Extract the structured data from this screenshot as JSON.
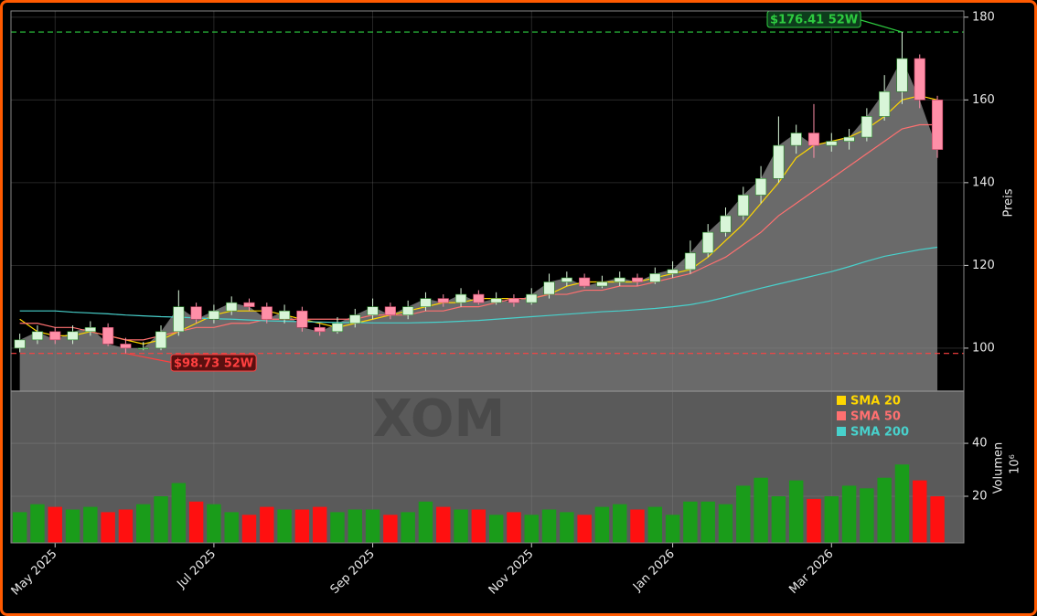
{
  "chart_data": {
    "type": "candlestick",
    "title": "XOM",
    "categories": [
      null,
      null,
      "May 2025",
      null,
      null,
      null,
      null,
      null,
      null,
      null,
      null,
      "Jul 2025",
      null,
      null,
      null,
      null,
      null,
      null,
      null,
      null,
      "Sep 2025",
      null,
      null,
      null,
      null,
      null,
      null,
      null,
      null,
      "Nov 2025",
      null,
      null,
      null,
      null,
      null,
      null,
      null,
      "Jan 2026",
      null,
      null,
      null,
      null,
      null,
      null,
      null,
      null,
      "Mar 2026",
      null,
      null,
      null,
      null,
      null,
      null
    ],
    "open": [
      100,
      102,
      104,
      102,
      104,
      105,
      101,
      100,
      100,
      104,
      110,
      107,
      109,
      111,
      110,
      107,
      109,
      105,
      104,
      106,
      108,
      110,
      108,
      110,
      112,
      111,
      113,
      111,
      112,
      111,
      113,
      116,
      117,
      115,
      116,
      117,
      116,
      118,
      119,
      123,
      128,
      132,
      137,
      141,
      149,
      152,
      149,
      150,
      151,
      156,
      162,
      170,
      160
    ],
    "high": [
      103.5,
      105.5,
      105,
      105.5,
      106.5,
      106,
      102.5,
      101.5,
      105.5,
      114,
      111,
      110.5,
      112.5,
      112,
      111,
      110.5,
      110,
      106,
      107.5,
      109.5,
      112,
      111,
      111.5,
      113.5,
      113,
      114.5,
      114,
      113.5,
      113,
      114.5,
      118,
      118.5,
      118,
      117.5,
      118.5,
      118,
      119.5,
      121,
      126,
      130,
      134,
      139,
      144,
      156,
      154,
      159,
      152,
      153,
      158,
      166,
      176.41,
      171,
      161
    ],
    "low": [
      99,
      101,
      101,
      101,
      103,
      100.5,
      98.73,
      99.5,
      99.5,
      103,
      106,
      106,
      108,
      109,
      106,
      106,
      104,
      103,
      103.5,
      105,
      107,
      107,
      107,
      109,
      110,
      110,
      110.5,
      110.5,
      110,
      110.5,
      112,
      115,
      114.5,
      114.5,
      115,
      115,
      115.5,
      117,
      118,
      122,
      127,
      131,
      135,
      140,
      147,
      146,
      147.5,
      148,
      150,
      155,
      159,
      158,
      146
    ],
    "close": [
      102,
      104,
      102,
      104,
      105,
      101,
      100,
      100,
      104,
      110,
      107,
      109,
      111,
      110,
      107,
      109,
      105,
      104,
      106,
      108,
      110,
      108,
      110,
      112,
      111,
      113,
      111,
      112,
      111,
      113,
      116,
      117,
      115,
      116,
      117,
      116,
      118,
      119,
      123,
      128,
      132,
      137,
      141,
      149,
      152,
      149,
      150,
      151,
      156,
      162,
      170,
      160,
      148
    ],
    "up_color": "#d8f5d8",
    "down_color": "#ff8fa8",
    "area_color": "#6a6a6a",
    "ylim": [
      89.6,
      181.5
    ],
    "yticks": [
      100,
      120,
      140,
      160,
      180
    ],
    "ylabel": "Preis",
    "grid": true,
    "series": [
      {
        "name": "SMA 20",
        "color": "#ffd700",
        "values": [
          107,
          104,
          103,
          103,
          104,
          103,
          102,
          101,
          102,
          104,
          106,
          108,
          109,
          109,
          109,
          108,
          107,
          106,
          105,
          106,
          107,
          108,
          109,
          110,
          111,
          111,
          112,
          112,
          112,
          112,
          113,
          115,
          116,
          116,
          116,
          116,
          117,
          118,
          119,
          122,
          126,
          130,
          135,
          140,
          146,
          149,
          150,
          151,
          153,
          156,
          160,
          161,
          160
        ]
      },
      {
        "name": "SMA 50",
        "color": "#ff7070",
        "values": [
          106,
          106,
          105,
          105,
          104,
          103,
          102,
          102,
          103,
          104,
          105,
          105,
          106,
          106,
          107,
          107,
          107,
          107,
          107,
          107,
          108,
          108,
          108,
          109,
          109,
          110,
          110,
          111,
          112,
          112,
          113,
          113,
          114,
          114,
          115,
          115,
          116,
          117,
          118,
          120,
          122,
          125,
          128,
          132,
          135,
          138,
          141,
          144,
          147,
          150,
          153,
          154,
          154
        ]
      },
      {
        "name": "SMA 200",
        "color": "#48d1cc",
        "values": [
          109,
          109,
          109,
          108.7,
          108.5,
          108.3,
          108,
          107.8,
          107.6,
          107.5,
          107.3,
          107.1,
          107,
          106.8,
          106.6,
          106.5,
          106.4,
          106.3,
          106.2,
          106.2,
          106.1,
          106.1,
          106.1,
          106.2,
          106.3,
          106.5,
          106.7,
          107,
          107.3,
          107.6,
          107.9,
          108.2,
          108.5,
          108.8,
          109,
          109.3,
          109.6,
          110,
          110.5,
          111.3,
          112.3,
          113.4,
          114.5,
          115.5,
          116.5,
          117.5,
          118.5,
          119.7,
          121,
          122.2,
          123,
          123.8,
          124.4
        ]
      }
    ],
    "hlines": [
      {
        "value": 176.41,
        "label": "$176.41 52W",
        "color": "#2ecc40"
      },
      {
        "value": 98.73,
        "label": "$98.73 52W",
        "color": "#ff4040"
      }
    ],
    "legend": "upper right",
    "volume": {
      "values": [
        14,
        17,
        16,
        15,
        16,
        14,
        15,
        17,
        20,
        25,
        18,
        17,
        14,
        13,
        16,
        15,
        15,
        16,
        14,
        15,
        15,
        13,
        14,
        18,
        16,
        15,
        15,
        13,
        14,
        13,
        15,
        14,
        13,
        16,
        17,
        15,
        16,
        13,
        18,
        18,
        17,
        24,
        27,
        20,
        26,
        19,
        20,
        24,
        23,
        27,
        32,
        26,
        20
      ],
      "up_color": "#1a9c1a",
      "down_color": "#ff1010",
      "ylim": [
        2.4,
        59.7
      ],
      "yticks": [
        20,
        40
      ],
      "ylabel": "Volumen",
      "scale_label": "10⁶"
    }
  }
}
